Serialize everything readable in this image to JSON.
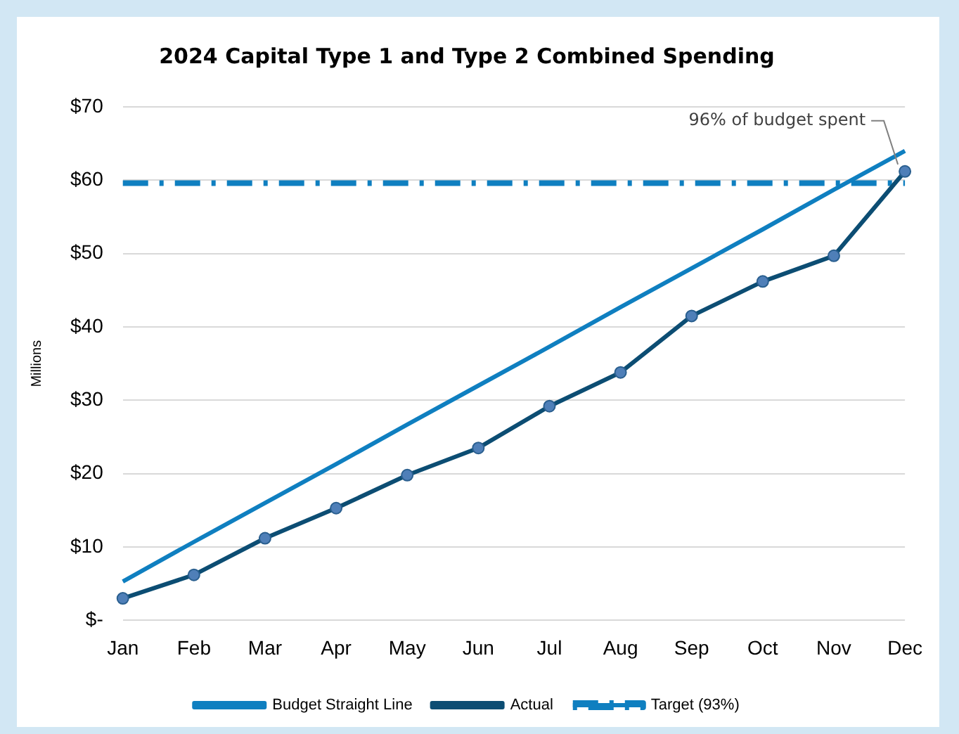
{
  "chart_data": {
    "type": "line",
    "title": "2024 Capital Type 1 and Type 2 Combined Spending",
    "ylabel": "Millions",
    "categories": [
      "Jan",
      "Feb",
      "Mar",
      "Apr",
      "May",
      "Jun",
      "Jul",
      "Aug",
      "Sep",
      "Oct",
      "Nov",
      "Dec"
    ],
    "series": [
      {
        "name": "Budget Straight Line",
        "color": "#0f7fc0",
        "marker": "none",
        "line_style": "solid",
        "values": [
          5.3,
          10.7,
          16,
          21.3,
          26.7,
          32,
          37.3,
          42.7,
          48,
          53.3,
          58.7,
          64
        ]
      },
      {
        "name": "Actual",
        "color": "#0c4d73",
        "marker": "circle",
        "line_style": "solid",
        "values": [
          3,
          6.2,
          11.2,
          15.3,
          19.8,
          23.5,
          29.2,
          33.8,
          41.5,
          46.2,
          49.7,
          61.2
        ]
      },
      {
        "name": "Target (93%)",
        "color": "#0f7fc0",
        "marker": "none",
        "line_style": "dashed",
        "values": [
          59.6,
          59.6,
          59.6,
          59.6,
          59.6,
          59.6,
          59.6,
          59.6,
          59.6,
          59.6,
          59.6,
          59.6
        ]
      }
    ],
    "ylim": [
      0,
      70
    ],
    "yticks": [
      {
        "value": 0,
        "label": "$-"
      },
      {
        "value": 10,
        "label": "$10"
      },
      {
        "value": 20,
        "label": "$20"
      },
      {
        "value": 30,
        "label": "$30"
      },
      {
        "value": 40,
        "label": "$40"
      },
      {
        "value": 50,
        "label": "$50"
      },
      {
        "value": 60,
        "label": "$60"
      },
      {
        "value": 70,
        "label": "$70"
      }
    ],
    "grid": "y",
    "legend": "bottom",
    "annotations": [
      {
        "text": "96% of budget spent",
        "x": "Dec",
        "y": 61.2
      }
    ]
  }
}
